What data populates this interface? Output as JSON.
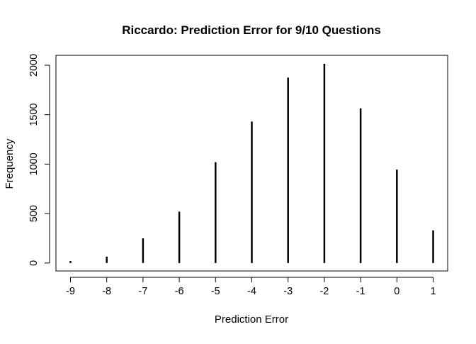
{
  "chart_data": {
    "type": "bar",
    "style": "histogram-spikes",
    "title": "Riccardo: Prediction Error for 9/10 Questions",
    "xlabel": "Prediction Error",
    "ylabel": "Frequency",
    "x": [
      -9,
      -8,
      -7,
      -6,
      -5,
      -4,
      -3,
      -2,
      -1,
      0,
      1
    ],
    "x_ticks": [
      "-9",
      "-8",
      "-7",
      "-6",
      "-5",
      "-4",
      "-3",
      "-2",
      "-1",
      "0",
      "1"
    ],
    "values": [
      20,
      65,
      250,
      520,
      1020,
      1430,
      1875,
      2015,
      1565,
      945,
      330
    ],
    "y_ticks": [
      "0",
      "500",
      "1000",
      "1500",
      "2000"
    ],
    "xlim": [
      -9.4,
      1.4
    ],
    "ylim": [
      -80,
      2100
    ],
    "grid": false,
    "legend": "none",
    "bar_color": "#000000"
  }
}
